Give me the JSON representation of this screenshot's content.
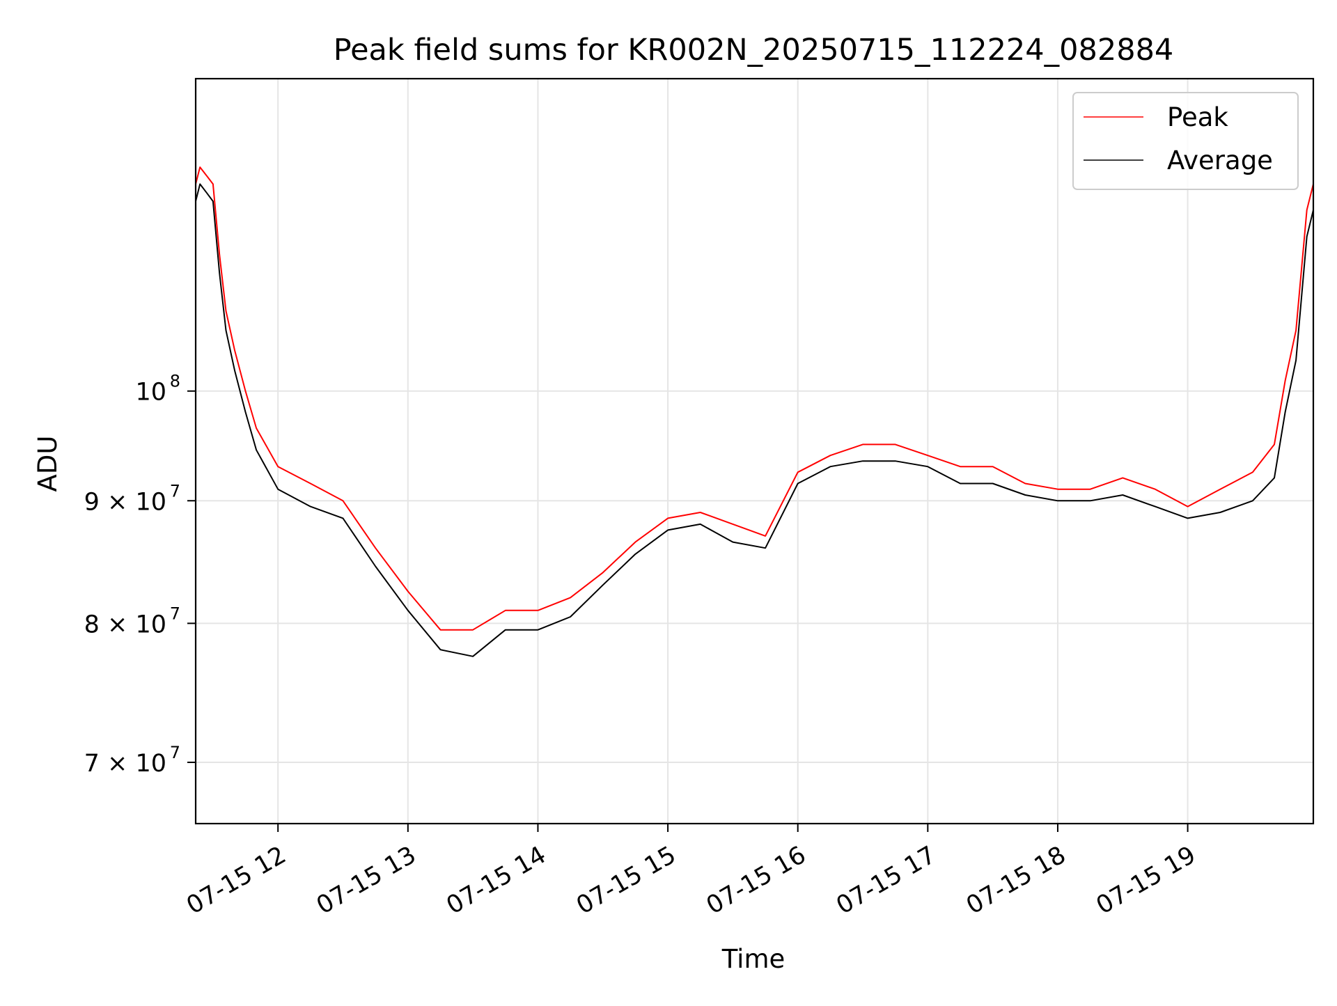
{
  "chart_data": {
    "type": "line",
    "title": "Peak field sums for KR002N_20250715_112224_082884",
    "xlabel": "Time",
    "ylabel": "ADU",
    "y_scale": "log",
    "ylim": [
      66000000,
      135000000
    ],
    "xlim": [
      "2025-07-15 11:22",
      "2025-07-15 19:58"
    ],
    "grid": true,
    "legend_position": "upper right",
    "x_ticks": [
      {
        "value": "2025-07-15 12:00",
        "label": "07-15 12"
      },
      {
        "value": "2025-07-15 13:00",
        "label": "07-15 13"
      },
      {
        "value": "2025-07-15 14:00",
        "label": "07-15 14"
      },
      {
        "value": "2025-07-15 15:00",
        "label": "07-15 15"
      },
      {
        "value": "2025-07-15 16:00",
        "label": "07-15 16"
      },
      {
        "value": "2025-07-15 17:00",
        "label": "07-15 17"
      },
      {
        "value": "2025-07-15 18:00",
        "label": "07-15 18"
      },
      {
        "value": "2025-07-15 19:00",
        "label": "07-15 19"
      }
    ],
    "y_ticks": [
      {
        "value": 70000000,
        "label": "7 × 10",
        "exponent": "7"
      },
      {
        "value": 80000000,
        "label": "8 × 10",
        "exponent": "7"
      },
      {
        "value": 90000000,
        "label": "9 × 10",
        "exponent": "7"
      },
      {
        "value": 100000000,
        "label": "10",
        "exponent": "8"
      }
    ],
    "series": [
      {
        "name": "Peak",
        "color": "#ff0000",
        "x": [
          "2025-07-15 11:22",
          "2025-07-15 11:24",
          "2025-07-15 11:27",
          "2025-07-15 11:30",
          "2025-07-15 11:33",
          "2025-07-15 11:36",
          "2025-07-15 11:40",
          "2025-07-15 11:45",
          "2025-07-15 11:50",
          "2025-07-15 12:00",
          "2025-07-15 12:15",
          "2025-07-15 12:30",
          "2025-07-15 12:45",
          "2025-07-15 13:00",
          "2025-07-15 13:15",
          "2025-07-15 13:30",
          "2025-07-15 13:45",
          "2025-07-15 14:00",
          "2025-07-15 14:15",
          "2025-07-15 14:30",
          "2025-07-15 14:45",
          "2025-07-15 15:00",
          "2025-07-15 15:15",
          "2025-07-15 15:30",
          "2025-07-15 15:45",
          "2025-07-15 16:00",
          "2025-07-15 16:15",
          "2025-07-15 16:30",
          "2025-07-15 16:45",
          "2025-07-15 17:00",
          "2025-07-15 17:15",
          "2025-07-15 17:30",
          "2025-07-15 17:45",
          "2025-07-15 18:00",
          "2025-07-15 18:15",
          "2025-07-15 18:30",
          "2025-07-15 18:45",
          "2025-07-15 19:00",
          "2025-07-15 19:15",
          "2025-07-15 19:30",
          "2025-07-15 19:40",
          "2025-07-15 19:45",
          "2025-07-15 19:50",
          "2025-07-15 19:55",
          "2025-07-15 19:58"
        ],
        "values": [
          122000000,
          124000000,
          123000000,
          122000000,
          114000000,
          108000000,
          104000000,
          100000000,
          96500000,
          93000000,
          91500000,
          90000000,
          86000000,
          82500000,
          79500000,
          79500000,
          81000000,
          81000000,
          82000000,
          84000000,
          86500000,
          88500000,
          89000000,
          88000000,
          87000000,
          92500000,
          94000000,
          95000000,
          95000000,
          94000000,
          93000000,
          93000000,
          91500000,
          91000000,
          91000000,
          92000000,
          91000000,
          89500000,
          91000000,
          92500000,
          95000000,
          101000000,
          106000000,
          119000000,
          122000000
        ]
      },
      {
        "name": "Average",
        "color": "#000000",
        "x": [
          "2025-07-15 11:22",
          "2025-07-15 11:24",
          "2025-07-15 11:27",
          "2025-07-15 11:30",
          "2025-07-15 11:33",
          "2025-07-15 11:36",
          "2025-07-15 11:40",
          "2025-07-15 11:45",
          "2025-07-15 11:50",
          "2025-07-15 12:00",
          "2025-07-15 12:15",
          "2025-07-15 12:30",
          "2025-07-15 12:45",
          "2025-07-15 13:00",
          "2025-07-15 13:15",
          "2025-07-15 13:30",
          "2025-07-15 13:45",
          "2025-07-15 14:00",
          "2025-07-15 14:15",
          "2025-07-15 14:30",
          "2025-07-15 14:45",
          "2025-07-15 15:00",
          "2025-07-15 15:15",
          "2025-07-15 15:30",
          "2025-07-15 15:45",
          "2025-07-15 16:00",
          "2025-07-15 16:15",
          "2025-07-15 16:30",
          "2025-07-15 16:45",
          "2025-07-15 17:00",
          "2025-07-15 17:15",
          "2025-07-15 17:30",
          "2025-07-15 17:45",
          "2025-07-15 18:00",
          "2025-07-15 18:15",
          "2025-07-15 18:30",
          "2025-07-15 18:45",
          "2025-07-15 19:00",
          "2025-07-15 19:15",
          "2025-07-15 19:30",
          "2025-07-15 19:40",
          "2025-07-15 19:45",
          "2025-07-15 19:50",
          "2025-07-15 19:55",
          "2025-07-15 19:58"
        ],
        "values": [
          120000000,
          122000000,
          121000000,
          120000000,
          112000000,
          106000000,
          102000000,
          98000000,
          94500000,
          91000000,
          89500000,
          88500000,
          84500000,
          81000000,
          78000000,
          77500000,
          79500000,
          79500000,
          80500000,
          83000000,
          85500000,
          87500000,
          88000000,
          86500000,
          86000000,
          91500000,
          93000000,
          93500000,
          93500000,
          93000000,
          91500000,
          91500000,
          90500000,
          90000000,
          90000000,
          90500000,
          89500000,
          88500000,
          89000000,
          90000000,
          92000000,
          98000000,
          103000000,
          116000000,
          119000000
        ]
      }
    ]
  }
}
